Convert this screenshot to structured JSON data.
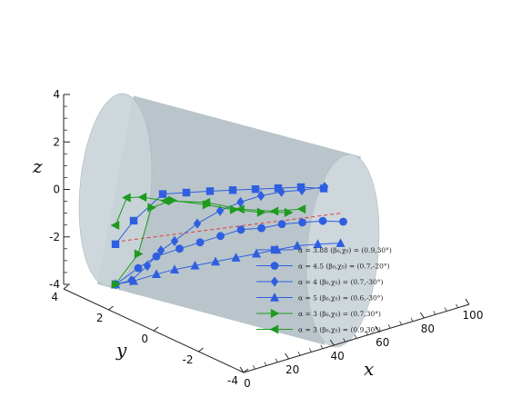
{
  "chart_data": {
    "type": "line3d",
    "title": "",
    "axes": {
      "x": {
        "label": "x",
        "ticks": [
          "0",
          "20",
          "40",
          "60",
          "80",
          "100"
        ],
        "range": [
          0,
          100
        ]
      },
      "y": {
        "label": "y",
        "ticks": [
          "4",
          "2",
          "0",
          "-2",
          "-4"
        ],
        "range": [
          -4,
          4
        ]
      },
      "z": {
        "label": "z",
        "ticks": [
          "4",
          "2",
          "0",
          "-2",
          "-4"
        ],
        "range": [
          -4,
          4
        ]
      }
    },
    "cylinder": {
      "radius": 4,
      "x_range": [
        0,
        100
      ],
      "color": "#c8d3d9"
    },
    "axis_line": {
      "color": "#e23b3b",
      "style": "dashed"
    },
    "legend_position": "bottom-right",
    "series": [
      {
        "name": "α = 3.88 (β₀,χ₀) = (0.9,30°)",
        "marker": "square",
        "color": "#2f5fe0",
        "points": [
          [
            0,
            0,
            -2.3
          ],
          [
            8,
            0,
            -1.1
          ],
          [
            20,
            -0.2,
            0.3
          ],
          [
            30,
            -0.3,
            0.6
          ],
          [
            40,
            -0.4,
            0.9
          ],
          [
            50,
            -0.4,
            1.2
          ],
          [
            60,
            -0.4,
            1.5
          ],
          [
            70,
            -0.4,
            1.8
          ],
          [
            80,
            -0.4,
            2.1
          ],
          [
            90,
            -0.4,
            2.3
          ]
        ]
      },
      {
        "name": "α = 4.5 (β₀,χ₀) = (0.7,-20°)",
        "marker": "circle",
        "color": "#2f5fe0",
        "points": [
          [
            0,
            0,
            -4
          ],
          [
            8,
            -0.5,
            -3.2
          ],
          [
            16,
            -0.5,
            -2.5
          ],
          [
            25,
            -0.8,
            -2
          ],
          [
            34,
            -0.8,
            -1.5
          ],
          [
            43,
            -0.8,
            -1
          ],
          [
            52,
            -0.8,
            -0.5
          ],
          [
            61,
            -0.8,
            -0.2
          ],
          [
            70,
            -0.8,
            0.2
          ],
          [
            79,
            -0.8,
            0.5
          ],
          [
            88,
            -0.8,
            0.8
          ],
          [
            97,
            -0.8,
            1
          ]
        ]
      },
      {
        "name": "α = 4 (β₀,χ₀) = (0.7,-30°)",
        "marker": "diamond",
        "color": "#2f5fe0",
        "points": [
          [
            0,
            0,
            -4
          ],
          [
            5,
            -0.5,
            -3.8
          ],
          [
            12,
            -0.5,
            -3
          ],
          [
            18,
            -0.5,
            -2.2
          ],
          [
            26,
            0,
            -1.5
          ],
          [
            36,
            0,
            -0.5
          ],
          [
            46,
            0,
            0.3
          ],
          [
            55,
            0,
            0.9
          ],
          [
            64,
            0,
            1.4
          ],
          [
            73,
            0,
            1.8
          ],
          [
            82,
            0,
            2.1
          ],
          [
            92,
            0,
            2.5
          ]
        ]
      },
      {
        "name": "α = 5 (β₀,χ₀) = (0.6,-30°)",
        "marker": "triangle-up",
        "color": "#2f5fe0",
        "points": [
          [
            0,
            0,
            -4
          ],
          [
            6,
            -0.5,
            -3.8
          ],
          [
            14,
            -1,
            -3.4
          ],
          [
            22,
            -1,
            -3
          ],
          [
            31,
            -1,
            -2.6
          ],
          [
            40,
            -1,
            -2.2
          ],
          [
            49,
            -1,
            -1.8
          ],
          [
            58,
            -1,
            -1.4
          ],
          [
            67,
            -1,
            -1
          ],
          [
            76,
            -1,
            -0.6
          ],
          [
            85,
            -1,
            -0.3
          ],
          [
            95,
            -1,
            0
          ]
        ]
      },
      {
        "name": "α = 3 (β₀,χ₀) = (0.7,30°)",
        "marker": "triangle-right",
        "color": "#1e9a1e",
        "points": [
          [
            0,
            0,
            -4
          ],
          [
            8,
            -0.5,
            -2.6
          ],
          [
            15,
            -0.2,
            -0.4
          ],
          [
            25,
            0,
            0.2
          ],
          [
            40,
            0,
            0.4
          ],
          [
            52,
            0,
            0.5
          ],
          [
            64,
            0,
            0.7
          ],
          [
            76,
            0,
            1
          ]
        ]
      },
      {
        "name": "α = 3 (β₀,χ₀) = (0.9,30°)",
        "marker": "triangle-left",
        "color": "#1e9a1e",
        "points": [
          [
            0,
            0,
            -1.5
          ],
          [
            5,
            0,
            -0.2
          ],
          [
            12,
            0,
            0
          ],
          [
            22,
            0,
            0.1
          ],
          [
            40,
            0,
            0.5
          ],
          [
            55,
            0,
            0.6
          ],
          [
            70,
            0,
            0.9
          ],
          [
            82,
            0,
            1.3
          ]
        ]
      }
    ]
  }
}
